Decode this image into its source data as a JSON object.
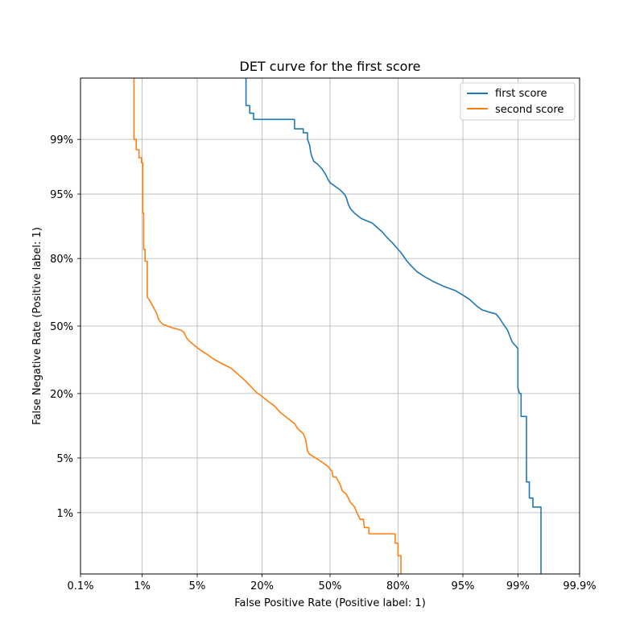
{
  "chart_data": {
    "type": "line",
    "title": "DET curve for the first score",
    "xlabel": "False Positive Rate (Positive label: 1)",
    "ylabel": "False Negative Rate (Positive label: 1)",
    "x_scale": "probit",
    "y_scale": "probit",
    "xlim": [
      0.001,
      0.999
    ],
    "ylim": [
      0.001,
      0.999
    ],
    "grid": true,
    "legend_position": "top-right",
    "x_ticks": [
      {
        "value": 0.001,
        "label": "0.1%"
      },
      {
        "value": 0.01,
        "label": "1%"
      },
      {
        "value": 0.05,
        "label": "5%"
      },
      {
        "value": 0.2,
        "label": "20%"
      },
      {
        "value": 0.5,
        "label": "50%"
      },
      {
        "value": 0.8,
        "label": "80%"
      },
      {
        "value": 0.95,
        "label": "95%"
      },
      {
        "value": 0.99,
        "label": "99%"
      },
      {
        "value": 0.999,
        "label": "99.9%"
      }
    ],
    "y_ticks": [
      {
        "value": 0.01,
        "label": "1%"
      },
      {
        "value": 0.05,
        "label": "5%"
      },
      {
        "value": 0.2,
        "label": "20%"
      },
      {
        "value": 0.5,
        "label": "50%"
      },
      {
        "value": 0.8,
        "label": "80%"
      },
      {
        "value": 0.95,
        "label": "95%"
      },
      {
        "value": 0.99,
        "label": "99%"
      }
    ],
    "series": [
      {
        "name": "first score",
        "color": "#1f77b4",
        "points": [
          [
            0.149,
            0.999
          ],
          [
            0.149,
            0.997
          ],
          [
            0.16,
            0.997
          ],
          [
            0.16,
            0.996
          ],
          [
            0.172,
            0.996
          ],
          [
            0.172,
            0.995
          ],
          [
            0.33,
            0.995
          ],
          [
            0.33,
            0.993
          ],
          [
            0.37,
            0.993
          ],
          [
            0.37,
            0.992
          ],
          [
            0.39,
            0.992
          ],
          [
            0.39,
            0.99
          ],
          [
            0.4,
            0.988
          ],
          [
            0.405,
            0.985
          ],
          [
            0.41,
            0.983
          ],
          [
            0.42,
            0.98
          ],
          [
            0.44,
            0.978
          ],
          [
            0.46,
            0.975
          ],
          [
            0.48,
            0.97
          ],
          [
            0.49,
            0.966
          ],
          [
            0.5,
            0.963
          ],
          [
            0.52,
            0.96
          ],
          [
            0.55,
            0.955
          ],
          [
            0.57,
            0.95
          ],
          [
            0.58,
            0.945
          ],
          [
            0.59,
            0.935
          ],
          [
            0.6,
            0.928
          ],
          [
            0.62,
            0.92
          ],
          [
            0.65,
            0.91
          ],
          [
            0.7,
            0.9
          ],
          [
            0.74,
            0.88
          ],
          [
            0.76,
            0.865
          ],
          [
            0.78,
            0.85
          ],
          [
            0.81,
            0.82
          ],
          [
            0.83,
            0.79
          ],
          [
            0.845,
            0.77
          ],
          [
            0.86,
            0.75
          ],
          [
            0.88,
            0.73
          ],
          [
            0.9,
            0.71
          ],
          [
            0.92,
            0.69
          ],
          [
            0.94,
            0.67
          ],
          [
            0.95,
            0.65
          ],
          [
            0.958,
            0.63
          ],
          [
            0.965,
            0.6
          ],
          [
            0.97,
            0.58
          ],
          [
            0.975,
            0.57
          ],
          [
            0.98,
            0.56
          ],
          [
            0.982,
            0.54
          ],
          [
            0.984,
            0.51
          ],
          [
            0.986,
            0.48
          ],
          [
            0.987,
            0.45
          ],
          [
            0.988,
            0.42
          ],
          [
            0.99,
            0.39
          ],
          [
            0.99,
            0.22
          ],
          [
            0.9905,
            0.2
          ],
          [
            0.991,
            0.2
          ],
          [
            0.991,
            0.13
          ],
          [
            0.9925,
            0.13
          ],
          [
            0.9925,
            0.026
          ],
          [
            0.9932,
            0.026
          ],
          [
            0.9932,
            0.016
          ],
          [
            0.994,
            0.016
          ],
          [
            0.994,
            0.012
          ],
          [
            0.9955,
            0.012
          ],
          [
            0.9955,
            0.001
          ]
        ]
      },
      {
        "name": "second score",
        "color": "#ff7f0e",
        "points": [
          [
            0.0076,
            0.999
          ],
          [
            0.0076,
            0.99
          ],
          [
            0.0082,
            0.99
          ],
          [
            0.0082,
            0.986
          ],
          [
            0.009,
            0.986
          ],
          [
            0.009,
            0.982
          ],
          [
            0.0098,
            0.982
          ],
          [
            0.0098,
            0.979
          ],
          [
            0.0102,
            0.979
          ],
          [
            0.0102,
            0.92
          ],
          [
            0.0105,
            0.92
          ],
          [
            0.0105,
            0.83
          ],
          [
            0.011,
            0.83
          ],
          [
            0.011,
            0.79
          ],
          [
            0.0118,
            0.79
          ],
          [
            0.0118,
            0.64
          ],
          [
            0.0125,
            0.63
          ],
          [
            0.0135,
            0.61
          ],
          [
            0.0145,
            0.59
          ],
          [
            0.016,
            0.56
          ],
          [
            0.017,
            0.53
          ],
          [
            0.019,
            0.51
          ],
          [
            0.022,
            0.5
          ],
          [
            0.026,
            0.49
          ],
          [
            0.032,
            0.48
          ],
          [
            0.035,
            0.47
          ],
          [
            0.038,
            0.44
          ],
          [
            0.042,
            0.42
          ],
          [
            0.048,
            0.4
          ],
          [
            0.055,
            0.38
          ],
          [
            0.065,
            0.36
          ],
          [
            0.075,
            0.34
          ],
          [
            0.09,
            0.32
          ],
          [
            0.11,
            0.3
          ],
          [
            0.13,
            0.27
          ],
          [
            0.145,
            0.25
          ],
          [
            0.16,
            0.23
          ],
          [
            0.18,
            0.205
          ],
          [
            0.2,
            0.19
          ],
          [
            0.22,
            0.175
          ],
          [
            0.245,
            0.16
          ],
          [
            0.27,
            0.14
          ],
          [
            0.3,
            0.125
          ],
          [
            0.33,
            0.112
          ],
          [
            0.345,
            0.1
          ],
          [
            0.37,
            0.09
          ],
          [
            0.38,
            0.08
          ],
          [
            0.385,
            0.07
          ],
          [
            0.39,
            0.06
          ],
          [
            0.4,
            0.055
          ],
          [
            0.43,
            0.05
          ],
          [
            0.46,
            0.045
          ],
          [
            0.49,
            0.04
          ],
          [
            0.51,
            0.035
          ],
          [
            0.515,
            0.03
          ],
          [
            0.53,
            0.03
          ],
          [
            0.55,
            0.024
          ],
          [
            0.56,
            0.02
          ],
          [
            0.58,
            0.018
          ],
          [
            0.6,
            0.014
          ],
          [
            0.62,
            0.012
          ],
          [
            0.63,
            0.01
          ],
          [
            0.645,
            0.008
          ],
          [
            0.66,
            0.008
          ],
          [
            0.665,
            0.006
          ],
          [
            0.685,
            0.006
          ],
          [
            0.685,
            0.0048
          ],
          [
            0.79,
            0.0048
          ],
          [
            0.79,
            0.0034
          ],
          [
            0.8,
            0.0034
          ],
          [
            0.8,
            0.0021
          ],
          [
            0.81,
            0.0021
          ],
          [
            0.81,
            0.001
          ]
        ]
      }
    ]
  }
}
